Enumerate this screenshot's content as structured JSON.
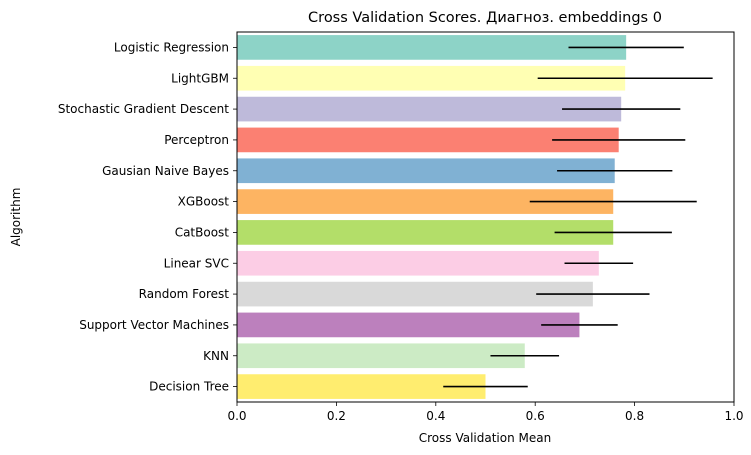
{
  "chart_data": {
    "type": "bar",
    "orientation": "horizontal",
    "title": "Cross Validation Scores. Диагноз. embeddings 0",
    "xlabel": "Cross Validation Mean",
    "ylabel": "Algorithm",
    "xlim": [
      0,
      1.0
    ],
    "xticks": [
      0.0,
      0.2,
      0.4,
      0.6,
      0.8,
      1.0
    ],
    "xtick_labels": [
      "0.0",
      "0.2",
      "0.4",
      "0.6",
      "0.8",
      "1.0"
    ],
    "grid": false,
    "error_bars": true,
    "categories": [
      "Logistic Regression",
      "LightGBM",
      "Stochastic Gradient Descent",
      "Perceptron",
      "Gausian Naive Bayes",
      "XGBoost",
      "CatBoost",
      "Linear SVC",
      "Random Forest",
      "Support Vector Machines",
      "KNN",
      "Decision Tree"
    ],
    "values": [
      0.783,
      0.781,
      0.773,
      0.768,
      0.76,
      0.757,
      0.757,
      0.728,
      0.716,
      0.689,
      0.579,
      0.5
    ],
    "errors": [
      0.116,
      0.176,
      0.119,
      0.134,
      0.116,
      0.168,
      0.118,
      0.069,
      0.114,
      0.077,
      0.069,
      0.085
    ],
    "colors": [
      "#8dd3c7",
      "#ffffb3",
      "#bebada",
      "#fb8072",
      "#80b1d3",
      "#fdb462",
      "#b3de69",
      "#fccde5",
      "#d9d9d9",
      "#bc80bd",
      "#ccebc5",
      "#ffed6f"
    ]
  }
}
